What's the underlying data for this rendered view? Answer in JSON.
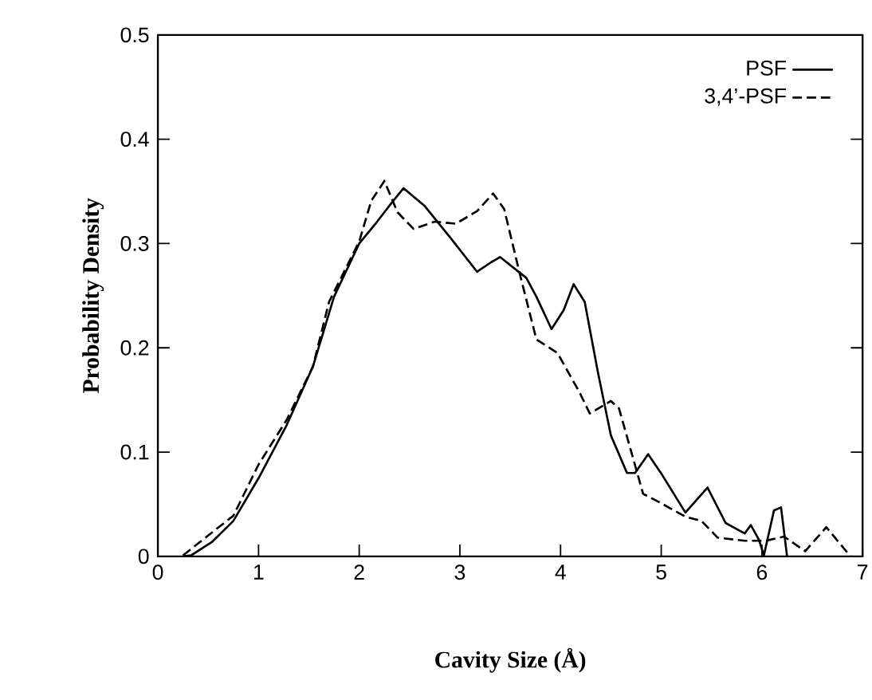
{
  "chart_data": {
    "type": "line",
    "xlabel": "Cavity Size (Å)",
    "ylabel": "Probability Density",
    "xlim": [
      0,
      7
    ],
    "ylim": [
      0,
      0.5
    ],
    "xticks": [
      0,
      1,
      2,
      3,
      4,
      5,
      6,
      7
    ],
    "yticks": [
      0,
      0.1,
      0.2,
      0.3,
      0.4,
      0.5
    ],
    "legend": "top right",
    "grid": false,
    "marker": "none",
    "series": [
      {
        "name": "PSF",
        "color": "#000000",
        "line_style": "solid",
        "x": [
          0.25,
          0.33,
          0.54,
          0.75,
          1.0,
          1.28,
          1.54,
          1.75,
          2.0,
          2.17,
          2.33,
          2.44,
          2.65,
          2.91,
          3.17,
          3.31,
          3.4,
          3.66,
          3.76,
          3.91,
          4.03,
          4.13,
          4.24,
          4.37,
          4.5,
          4.66,
          4.74,
          4.87,
          5.01,
          5.24,
          5.46,
          5.64,
          5.83,
          5.89,
          5.97,
          6.02,
          6.12,
          6.19,
          6.25
        ],
        "values": [
          0,
          0.001,
          0.014,
          0.034,
          0.075,
          0.126,
          0.182,
          0.249,
          0.3,
          0.32,
          0.34,
          0.353,
          0.336,
          0.305,
          0.273,
          0.282,
          0.287,
          0.267,
          0.249,
          0.218,
          0.236,
          0.261,
          0.244,
          0.177,
          0.116,
          0.08,
          0.08,
          0.098,
          0.078,
          0.042,
          0.066,
          0.032,
          0.022,
          0.03,
          0.016,
          0.001,
          0.044,
          0.047,
          0
        ]
      },
      {
        "name": "3,4’-PSF",
        "color": "#000000",
        "line_style": "dashed",
        "x": [
          0.25,
          0.75,
          1.0,
          1.28,
          1.54,
          1.7,
          2.0,
          2.12,
          2.25,
          2.38,
          2.54,
          2.75,
          2.96,
          3.17,
          3.33,
          3.44,
          3.6,
          3.76,
          3.97,
          4.19,
          4.29,
          4.5,
          4.58,
          4.82,
          4.98,
          5.24,
          5.4,
          5.56,
          5.83,
          6.04,
          6.22,
          6.43,
          6.64,
          6.88
        ],
        "values": [
          0.001,
          0.039,
          0.088,
          0.131,
          0.182,
          0.244,
          0.302,
          0.341,
          0.36,
          0.33,
          0.314,
          0.321,
          0.319,
          0.331,
          0.348,
          0.333,
          0.269,
          0.208,
          0.195,
          0.157,
          0.137,
          0.149,
          0.142,
          0.06,
          0.052,
          0.038,
          0.034,
          0.018,
          0.015,
          0.015,
          0.019,
          0.005,
          0.028,
          0
        ]
      }
    ]
  }
}
